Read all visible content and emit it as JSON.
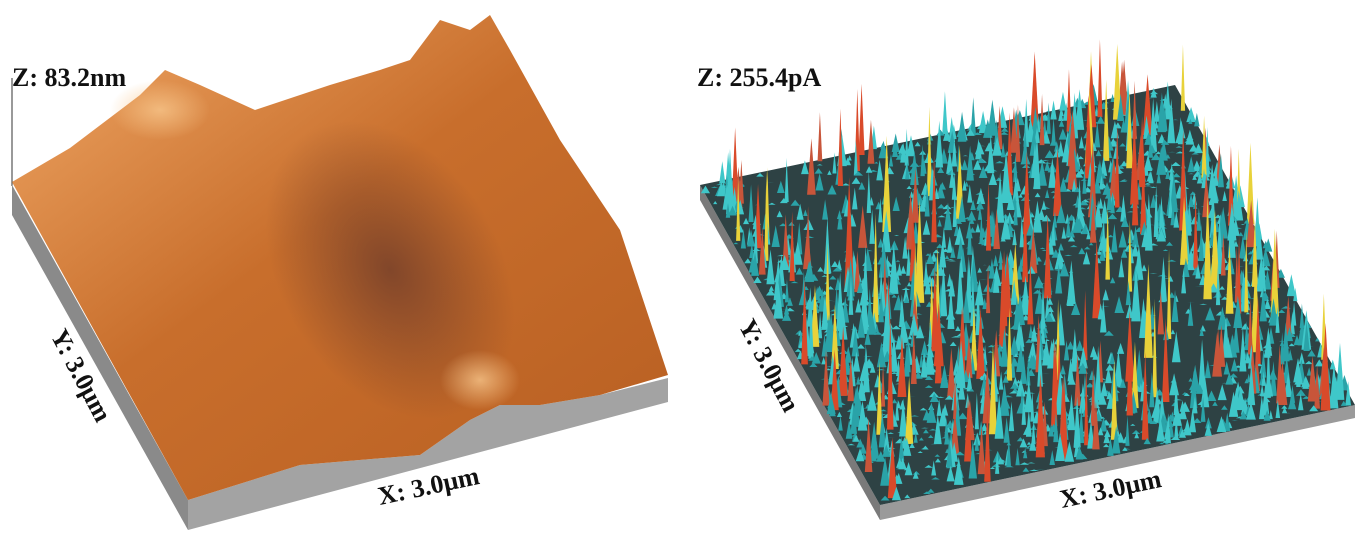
{
  "panels": [
    {
      "z_label": "Z: 83.2nm",
      "y_label": "Y: 3.0μm",
      "x_label": "X: 3.0μm"
    },
    {
      "z_label": "Z: 255.4pA",
      "y_label": "Y: 3.0μm",
      "x_label": "X: 3.0μm"
    }
  ]
}
